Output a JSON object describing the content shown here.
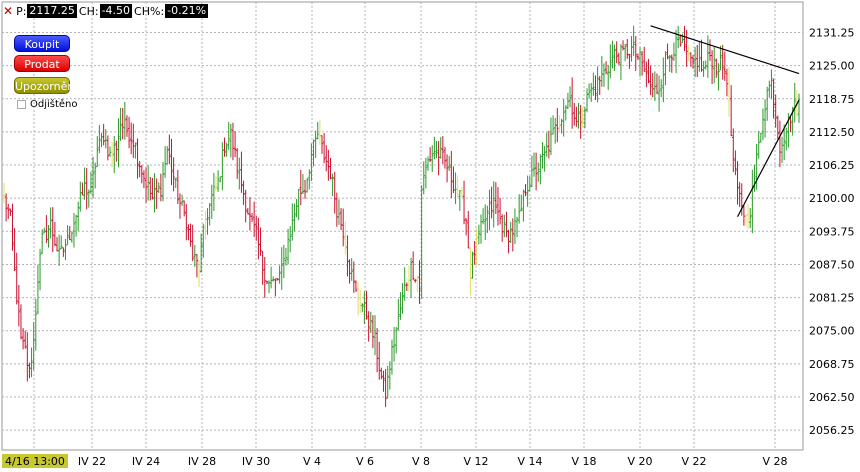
{
  "header": {
    "close_icon": "close-icon",
    "price_label": "P:",
    "price_value": "2117.25",
    "change_label": "CH:",
    "change_value": "-4.50",
    "change_pct_label": "CH%:",
    "change_pct_value": "-0.21%"
  },
  "buttons": {
    "buy": "Koupit",
    "sell": "Prodat",
    "alert": "Upozornění"
  },
  "hedge_label": "Odjištěno",
  "colors": {
    "up_bar": "#2a9a2a",
    "down_bar": "#c8102e",
    "neutral_bar": "#e0e060",
    "grid": "#b4b4b4",
    "trendline": "#000000"
  },
  "chart_data": {
    "type": "bar",
    "subtype": "ohlc",
    "title": "",
    "xlabel": "",
    "ylabel": "",
    "ylim": [
      2052.5,
      2137.0
    ],
    "y_ticks": [
      "2131.25",
      "2125.00",
      "2118.75",
      "2112.50",
      "2106.25",
      "2100.00",
      "2093.75",
      "2087.50",
      "2081.25",
      "2075.00",
      "2068.75",
      "2062.50",
      "2056.25"
    ],
    "x_ticks": [
      "4/16 13:00",
      "IV 22",
      "IV 24",
      "IV 28",
      "IV 30",
      "V 4",
      "V 6",
      "V 8",
      "V 12",
      "V 14",
      "V 18",
      "V 20",
      "V 22",
      "V 28"
    ],
    "grid": true,
    "anchors": [
      [
        0,
        2100
      ],
      [
        3,
        2096
      ],
      [
        5,
        2086
      ],
      [
        8,
        2073
      ],
      [
        10,
        2071
      ],
      [
        12,
        2067
      ],
      [
        14,
        2073
      ],
      [
        16,
        2085
      ],
      [
        18,
        2092
      ],
      [
        22,
        2095
      ],
      [
        26,
        2089
      ],
      [
        30,
        2092
      ],
      [
        34,
        2097
      ],
      [
        38,
        2102
      ],
      [
        41,
        2101
      ],
      [
        44,
        2109
      ],
      [
        47,
        2112
      ],
      [
        50,
        2108
      ],
      [
        53,
        2110
      ],
      [
        55,
        2114
      ],
      [
        58,
        2113
      ],
      [
        61,
        2111
      ],
      [
        63,
        2108
      ],
      [
        66,
        2104
      ],
      [
        70,
        2100
      ],
      [
        74,
        2102
      ],
      [
        77,
        2109
      ],
      [
        80,
        2104
      ],
      [
        83,
        2099
      ],
      [
        86,
        2096
      ],
      [
        89,
        2089
      ],
      [
        92,
        2087
      ],
      [
        95,
        2096
      ],
      [
        98,
        2100
      ],
      [
        101,
        2103
      ],
      [
        104,
        2110
      ],
      [
        107,
        2112
      ],
      [
        110,
        2106
      ],
      [
        113,
        2101
      ],
      [
        116,
        2096
      ],
      [
        119,
        2093
      ],
      [
        122,
        2087
      ],
      [
        125,
        2084
      ],
      [
        128,
        2084
      ],
      [
        131,
        2086
      ],
      [
        134,
        2092
      ],
      [
        137,
        2097
      ],
      [
        139,
        2101
      ],
      [
        142,
        2102
      ],
      [
        145,
        2108
      ],
      [
        148,
        2112
      ],
      [
        151,
        2108
      ],
      [
        154,
        2105
      ],
      [
        157,
        2098
      ],
      [
        160,
        2094
      ],
      [
        163,
        2087
      ],
      [
        166,
        2082
      ],
      [
        169,
        2080
      ],
      [
        172,
        2077
      ],
      [
        175,
        2073
      ],
      [
        178,
        2066
      ],
      [
        180,
        2063
      ],
      [
        183,
        2071
      ],
      [
        186,
        2077
      ],
      [
        189,
        2083
      ],
      [
        192,
        2087
      ],
      [
        195,
        2085
      ],
      [
        196,
        2083
      ],
      [
        197,
        2102
      ],
      [
        200,
        2107
      ],
      [
        203,
        2109
      ],
      [
        206,
        2108
      ],
      [
        209,
        2106
      ],
      [
        212,
        2103
      ],
      [
        215,
        2100
      ],
      [
        218,
        2096
      ],
      [
        220,
        2086
      ],
      [
        222,
        2090
      ],
      [
        225,
        2094
      ],
      [
        228,
        2097
      ],
      [
        231,
        2099
      ],
      [
        234,
        2096
      ],
      [
        237,
        2093
      ],
      [
        240,
        2094
      ],
      [
        243,
        2096
      ],
      [
        246,
        2102
      ],
      [
        249,
        2104
      ],
      [
        252,
        2106
      ],
      [
        255,
        2108
      ],
      [
        258,
        2111
      ],
      [
        261,
        2114
      ],
      [
        264,
        2117
      ],
      [
        267,
        2119
      ],
      [
        270,
        2114
      ],
      [
        273,
        2116
      ],
      [
        276,
        2120
      ],
      [
        279,
        2121
      ],
      [
        282,
        2123
      ],
      [
        285,
        2125
      ],
      [
        288,
        2127
      ],
      [
        291,
        2127
      ],
      [
        294,
        2128
      ],
      [
        297,
        2128
      ],
      [
        300,
        2126
      ],
      [
        303,
        2123
      ],
      [
        306,
        2120
      ],
      [
        309,
        2121
      ],
      [
        312,
        2126
      ],
      [
        315,
        2128
      ],
      [
        318,
        2129
      ],
      [
        321,
        2128
      ],
      [
        324,
        2125
      ],
      [
        327,
        2126
      ],
      [
        330,
        2124
      ],
      [
        333,
        2127
      ],
      [
        336,
        2125
      ],
      [
        339,
        2125
      ],
      [
        341,
        2123
      ],
      [
        342,
        2117
      ],
      [
        344,
        2107
      ],
      [
        346,
        2101
      ],
      [
        348,
        2099
      ],
      [
        350,
        2096
      ],
      [
        352,
        2098
      ],
      [
        354,
        2104
      ],
      [
        356,
        2110
      ],
      [
        358,
        2116
      ],
      [
        360,
        2120
      ],
      [
        362,
        2122
      ],
      [
        364,
        2116
      ],
      [
        366,
        2110
      ],
      [
        368,
        2112
      ],
      [
        370,
        2114
      ],
      [
        372,
        2117
      ],
      [
        374,
        2117
      ],
      [
        375,
        2118
      ]
    ],
    "annotations": [
      {
        "type": "trendline",
        "from": [
          305,
          2132.5
        ],
        "to": [
          375,
          2123.5
        ]
      },
      {
        "type": "trendline",
        "from": [
          346,
          2096.5
        ],
        "to": [
          375,
          2118.5
        ]
      }
    ]
  }
}
